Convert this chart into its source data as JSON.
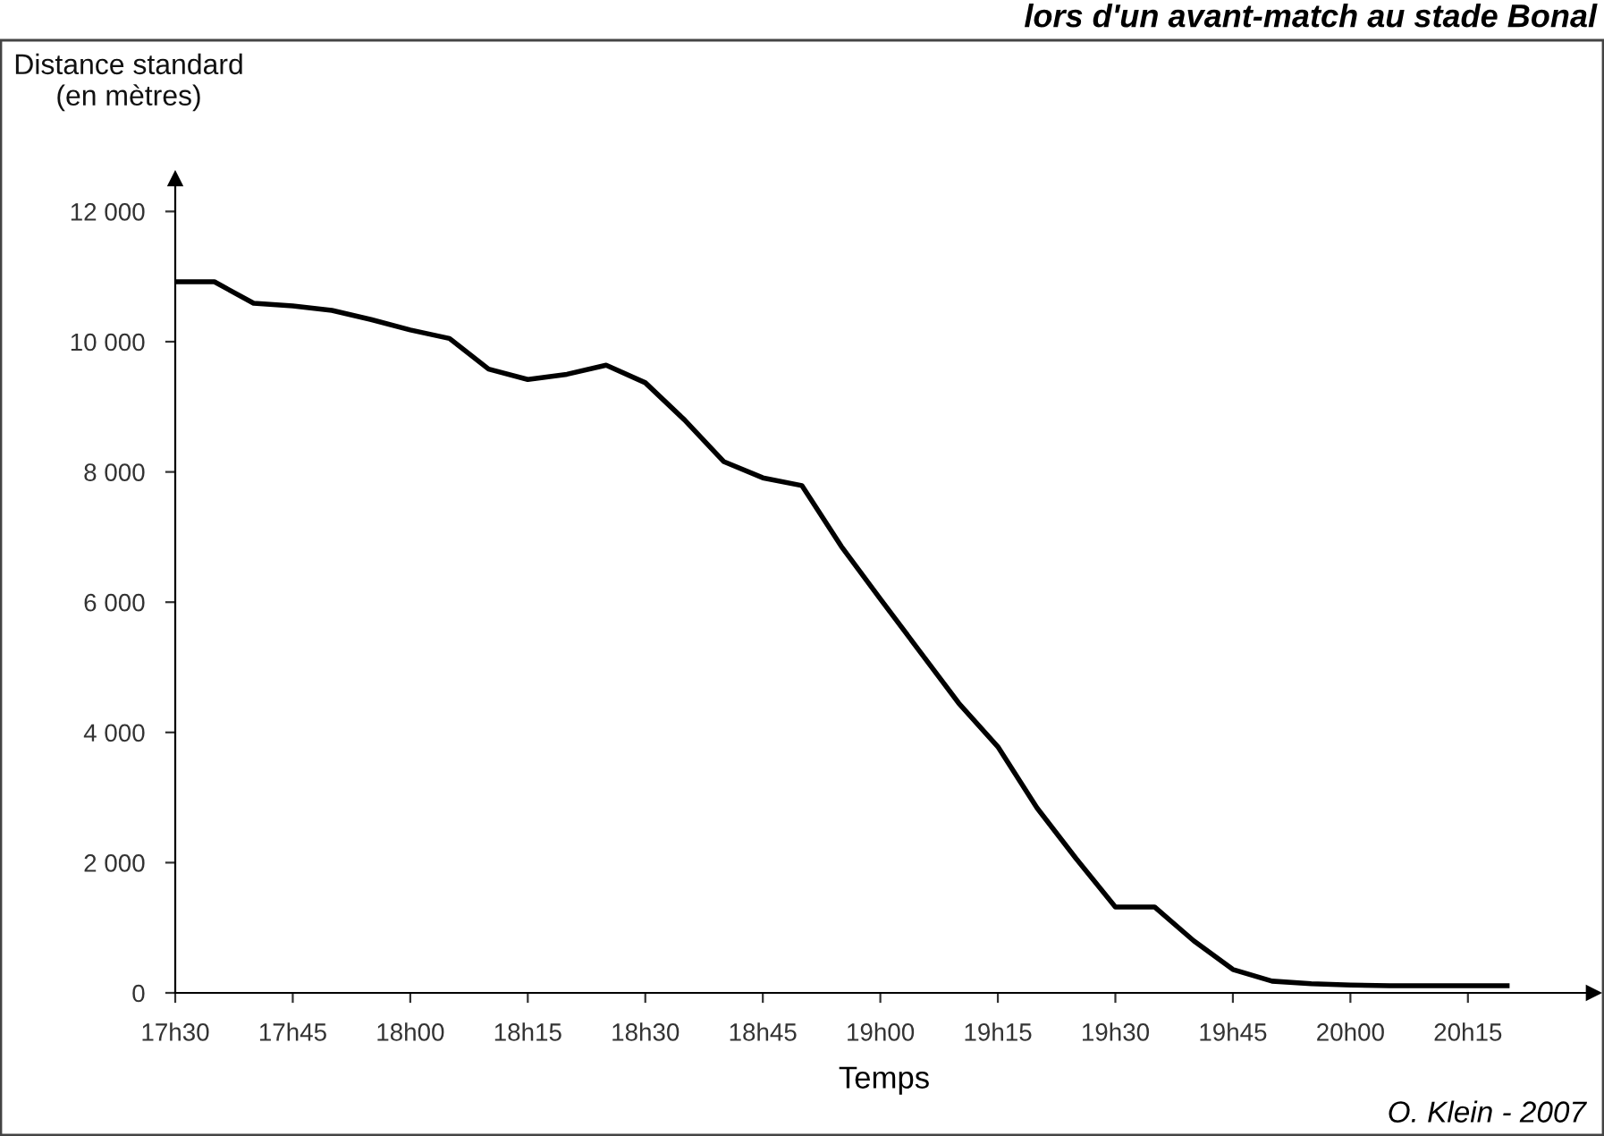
{
  "chart_data": {
    "type": "line",
    "title": "lors d'un avant-match au stade Bonal",
    "ylabel": "Distance standard\n(en mètres)",
    "xlabel": "Temps",
    "annotations": [
      "O. Klein - 2007"
    ],
    "categories": [
      "17h30",
      null,
      null,
      "17h45",
      null,
      null,
      "18h00",
      null,
      null,
      "18h15",
      null,
      null,
      "18h30",
      null,
      null,
      "18h45",
      null,
      null,
      "19h00",
      null,
      null,
      "19h15",
      null,
      null,
      "19h30",
      null,
      null,
      "19h45",
      null,
      null,
      "20h00",
      null,
      null,
      "20h15",
      null
    ],
    "series": [
      {
        "color": "#000000",
        "values": [
          10920,
          10920,
          10590,
          10550,
          10480,
          10340,
          10180,
          10050,
          9580,
          9420,
          9500,
          9640,
          9370,
          8800,
          8160,
          7910,
          7790,
          6860,
          6050,
          5250,
          4450,
          3780,
          2840,
          2060,
          1320,
          1320,
          800,
          360,
          180,
          140,
          120,
          110,
          110,
          110,
          110
        ]
      }
    ],
    "ylim": [
      0,
      12500
    ],
    "yticks": [
      0,
      {
        "value": 2000,
        "label": "2 000"
      },
      {
        "value": 4000,
        "label": "4 000"
      },
      {
        "value": 6000,
        "label": "6 000"
      },
      {
        "value": 8000,
        "label": "8 000"
      },
      {
        "value": 10000,
        "label": "10 000"
      },
      {
        "value": 12000,
        "label": "12 000"
      }
    ],
    "grid": false,
    "marker": "none",
    "line_style": "solid"
  }
}
